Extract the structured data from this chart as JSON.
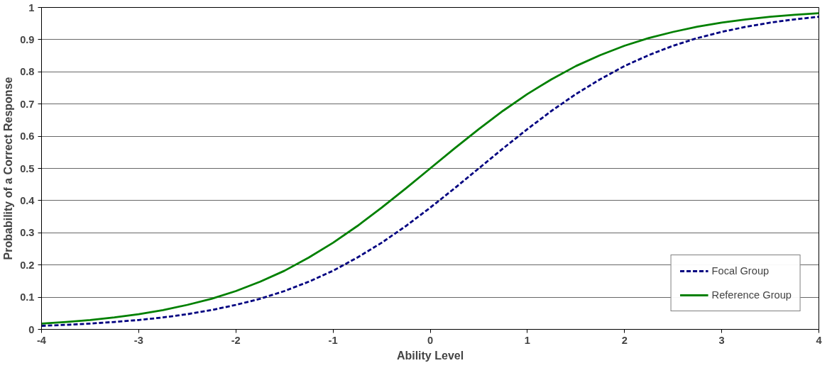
{
  "chart_data": {
    "type": "line",
    "xlabel": "Ability Level",
    "ylabel": "Probability of a Correct Response",
    "x": [
      -4,
      -3.75,
      -3.5,
      -3.25,
      -3,
      -2.75,
      -2.5,
      -2.25,
      -2,
      -1.75,
      -1.5,
      -1.25,
      -1,
      -0.75,
      -0.5,
      -0.25,
      0,
      0.25,
      0.5,
      0.75,
      1,
      1.25,
      1.5,
      1.75,
      2,
      2.25,
      2.5,
      2.75,
      3,
      3.25,
      3.5,
      3.75,
      4
    ],
    "series": [
      {
        "name": "Focal Group",
        "color": "#000080",
        "line_style": "dashed",
        "values": [
          0.011,
          0.014,
          0.018,
          0.023,
          0.029,
          0.037,
          0.047,
          0.06,
          0.076,
          0.095,
          0.119,
          0.148,
          0.182,
          0.223,
          0.269,
          0.321,
          0.378,
          0.438,
          0.5,
          0.562,
          0.622,
          0.679,
          0.731,
          0.777,
          0.818,
          0.852,
          0.881,
          0.905,
          0.924,
          0.94,
          0.953,
          0.963,
          0.971
        ]
      },
      {
        "name": "Reference Group",
        "color": "#008000",
        "line_style": "solid",
        "values": [
          0.018,
          0.023,
          0.029,
          0.037,
          0.047,
          0.06,
          0.076,
          0.095,
          0.119,
          0.148,
          0.182,
          0.223,
          0.269,
          0.321,
          0.378,
          0.438,
          0.5,
          0.562,
          0.622,
          0.679,
          0.731,
          0.777,
          0.818,
          0.852,
          0.881,
          0.905,
          0.924,
          0.94,
          0.953,
          0.963,
          0.971,
          0.977,
          0.982
        ]
      }
    ],
    "xlim": [
      -4,
      4
    ],
    "xticks": [
      -4,
      -3,
      -2,
      -1,
      0,
      1,
      2,
      3,
      4
    ],
    "ylim": [
      0,
      1
    ],
    "yticks": [
      0,
      0.1,
      0.2,
      0.3,
      0.4,
      0.5,
      0.6,
      0.7,
      0.8,
      0.9,
      1
    ],
    "grid": "y",
    "legend": "bottom right",
    "marker": "none"
  }
}
